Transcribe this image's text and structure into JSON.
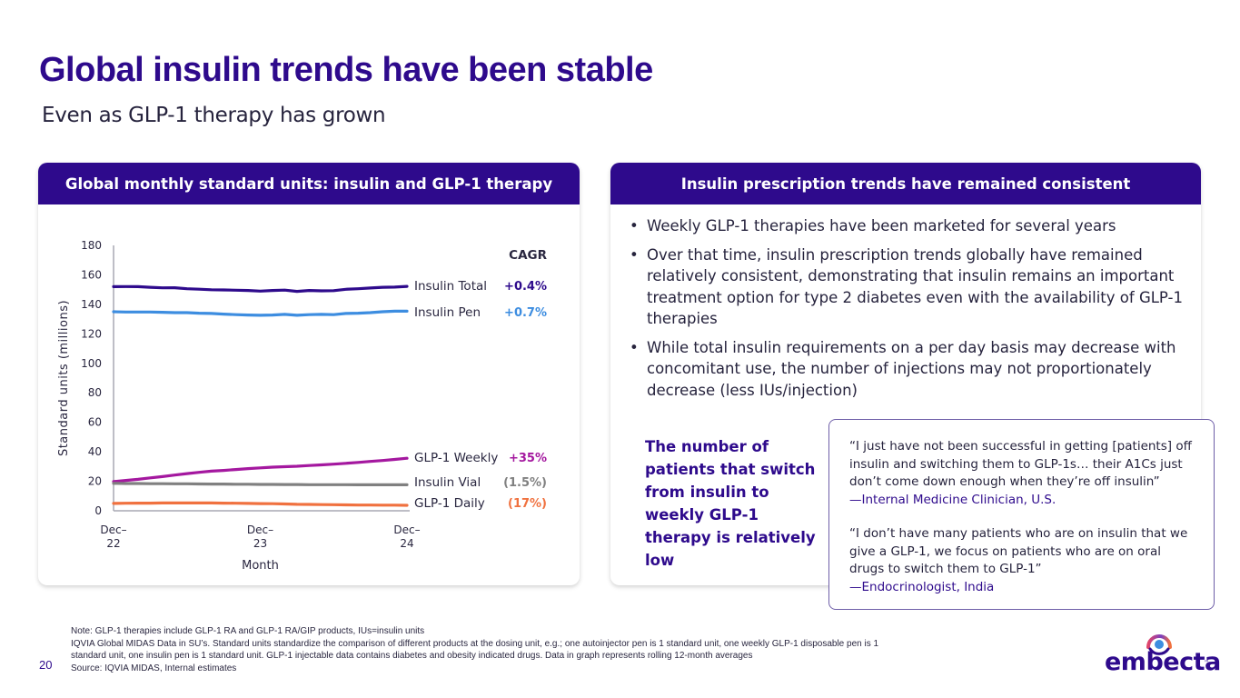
{
  "header": {
    "title": "Global insulin trends have been stable",
    "subtitle": "Even as GLP-1 therapy has grown"
  },
  "left_card": {
    "title": "Global monthly standard units: insulin and GLP-1 therapy"
  },
  "right_card": {
    "title": "Insulin prescription trends have remained consistent",
    "bullets": [
      "Weekly GLP-1 therapies have been marketed for several years",
      "Over that time, insulin prescription trends globally have remained relatively consistent, demonstrating that insulin remains an important treatment option for type 2 diabetes even with the availability of GLP-1 therapies",
      "While total insulin requirements on a per day basis may decrease with concomitant use, the number of injections may not proportionately decrease (less IUs/injection)"
    ],
    "callout": "The number of patients that switch from insulin to weekly GLP-1 therapy is relatively low"
  },
  "quotes": [
    {
      "text": "“I just have not been successful in getting [patients] off insulin and switching them to GLP-1s… their A1Cs just don’t come down enough when they’re off insulin”",
      "attribution": "—Internal Medicine Clinician, U.S."
    },
    {
      "text": "“I don’t have many patients who are on insulin that we give a GLP-1, we focus on patients who are on oral drugs to switch them to GLP-1”",
      "attribution": "—Endocrinologist, India"
    }
  ],
  "footer": {
    "page_number": "20",
    "notes": [
      "Note: GLP-1 therapies include GLP-1 RA and GLP-1 RA/GIP products, IUs=insulin units",
      "IQVIA Global MIDAS Data in SU’s. Standard units standardize the comparison of different products at the dosing unit, e.g.; one autoinjector pen is 1 standard unit, one weekly GLP-1 disposable pen is 1 standard unit, one insulin pen is 1 standard unit. GLP-1 injectable data contains diabetes and obesity indicated drugs. Data in graph represents rolling 12-month averages",
      "Source: IQVIA MIDAS, Internal estimates"
    ],
    "logo_text": "embecta",
    "logo_tm": "™"
  },
  "colors": {
    "brand_purple": "#2e0a8c",
    "insulin_total": "#2e0a8c",
    "insulin_pen": "#3d8de0",
    "glp1_weekly": "#a4189f",
    "insulin_vial": "#808080",
    "glp1_daily": "#f0713f"
  },
  "chart_data": {
    "type": "line",
    "title": "Global monthly standard units: insulin and GLP-1 therapy",
    "xlabel": "Month",
    "ylabel": "Standard units (millions)",
    "ylim": [
      0,
      180
    ],
    "yticks": [
      0,
      20,
      40,
      60,
      80,
      100,
      120,
      140,
      160,
      180
    ],
    "xtick_labels": [
      [
        "Dec–",
        "22"
      ],
      [
        "Dec–",
        "23"
      ],
      [
        "Dec–",
        "24"
      ]
    ],
    "xtick_positions": [
      0,
      12,
      24
    ],
    "x": [
      0,
      1,
      2,
      3,
      4,
      5,
      6,
      7,
      8,
      9,
      10,
      11,
      12,
      13,
      14,
      15,
      16,
      17,
      18,
      19,
      20,
      21,
      22,
      23,
      24
    ],
    "grid": false,
    "legend_header": "CAGR",
    "legend_position": "right",
    "series": [
      {
        "name": "Insulin Total",
        "cagr": "+0.4%",
        "color": "#2e0a8c",
        "values": [
          152.0,
          152.1,
          152.0,
          151.6,
          151.2,
          151.3,
          150.6,
          150.3,
          149.9,
          149.8,
          149.6,
          149.4,
          149.0,
          149.4,
          149.7,
          148.8,
          149.4,
          149.2,
          149.3,
          150.2,
          150.6,
          151.1,
          151.6,
          151.7,
          152.2
        ]
      },
      {
        "name": "Insulin Pen",
        "cagr": "+0.7%",
        "color": "#3d8de0",
        "values": [
          135.0,
          134.8,
          134.8,
          134.8,
          134.6,
          134.4,
          134.4,
          134.0,
          133.8,
          133.4,
          133.0,
          132.8,
          132.6,
          132.8,
          133.2,
          132.6,
          133.0,
          133.2,
          133.0,
          133.8,
          134.0,
          134.4,
          135.0,
          135.4,
          135.4
        ]
      },
      {
        "name": "GLP-1 Weekly",
        "cagr": "+35%",
        "color": "#a4189f",
        "values": [
          19.8,
          20.6,
          21.3,
          22.3,
          23.2,
          24.2,
          25.2,
          26.1,
          26.9,
          27.4,
          28.0,
          28.6,
          29.1,
          29.6,
          29.9,
          30.2,
          30.7,
          31.1,
          31.6,
          32.2,
          32.8,
          33.5,
          34.1,
          34.8,
          35.6
        ]
      },
      {
        "name": "Insulin Vial",
        "cagr": "(1.5%)",
        "color": "#808080",
        "values": [
          18.6,
          18.5,
          18.5,
          18.4,
          18.4,
          18.3,
          18.3,
          18.2,
          18.1,
          18.1,
          18.0,
          18.0,
          17.9,
          17.9,
          17.8,
          17.8,
          17.7,
          17.7,
          17.7,
          17.7,
          17.6,
          17.6,
          17.6,
          17.6,
          17.6
        ]
      },
      {
        "name": "GLP-1 Daily",
        "cagr": "(17%)",
        "color": "#f0713f",
        "values": [
          5.0,
          5.1,
          5.2,
          5.2,
          5.3,
          5.3,
          5.3,
          5.3,
          5.3,
          5.2,
          5.1,
          5.0,
          4.9,
          4.8,
          4.6,
          4.4,
          4.3,
          4.2,
          4.1,
          4.0,
          3.9,
          3.9,
          3.8,
          3.8,
          3.7
        ]
      }
    ]
  }
}
